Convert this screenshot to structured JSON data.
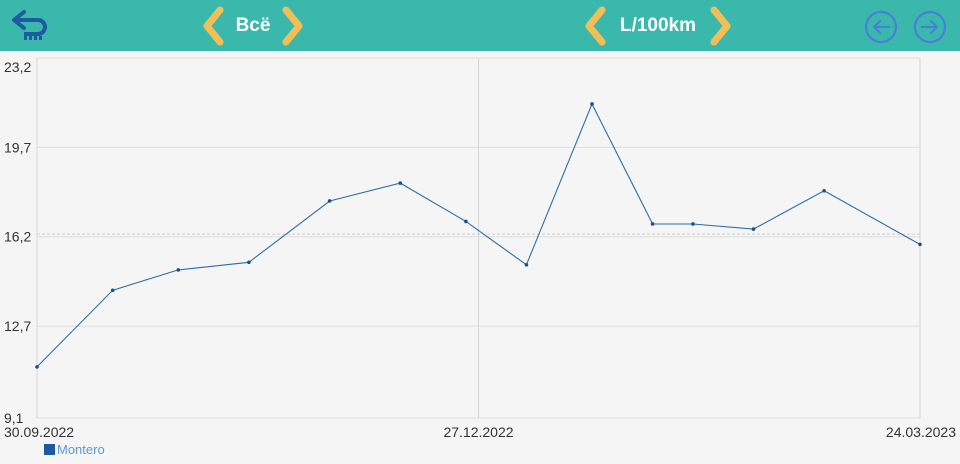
{
  "toolbar": {
    "period_label": "Всё",
    "metric_label": "L/100km",
    "back_icon": "back-arrow-icon",
    "prev_icon": "arrow-left-circle-icon",
    "next_icon": "arrow-right-circle-icon"
  },
  "colors": {
    "toolbar_bg": "#3ab8ac",
    "chevron": "#f2bf57",
    "series_line": "#2e6da4",
    "nav_icon": "#4a7fd8"
  },
  "chart_data": {
    "type": "line",
    "title": "",
    "xlabel": "",
    "ylabel": "",
    "ylim": [
      9.1,
      23.2
    ],
    "y_ticks": [
      "23,2",
      "19,7",
      "16,2",
      "12,7",
      "9,1"
    ],
    "y_tick_values": [
      23.2,
      19.7,
      16.2,
      12.7,
      9.1
    ],
    "x_tick_labels": [
      "30.09.2022",
      "27.12.2022",
      "24.03.2023"
    ],
    "x_range": [
      "2022-09-30",
      "2023-03-24"
    ],
    "average": 16.3,
    "grid": true,
    "series": [
      {
        "name": "Montero",
        "points": [
          [
            "2022-09-30",
            11.1
          ],
          [
            "2022-10-15",
            14.1
          ],
          [
            "2022-10-28",
            14.9
          ],
          [
            "2022-11-11",
            15.2
          ],
          [
            "2022-11-27",
            17.6
          ],
          [
            "2022-12-11",
            18.3
          ],
          [
            "2022-12-24",
            16.8
          ],
          [
            "2023-01-05",
            15.1
          ],
          [
            "2023-01-18",
            21.4
          ],
          [
            "2023-01-30",
            16.7
          ],
          [
            "2023-02-07",
            16.7
          ],
          [
            "2023-02-19",
            16.5
          ],
          [
            "2023-03-05",
            18.0
          ],
          [
            "2023-03-24",
            15.9
          ]
        ]
      }
    ],
    "legend": {
      "position": "bottom-left",
      "items": [
        "Montero"
      ]
    }
  }
}
